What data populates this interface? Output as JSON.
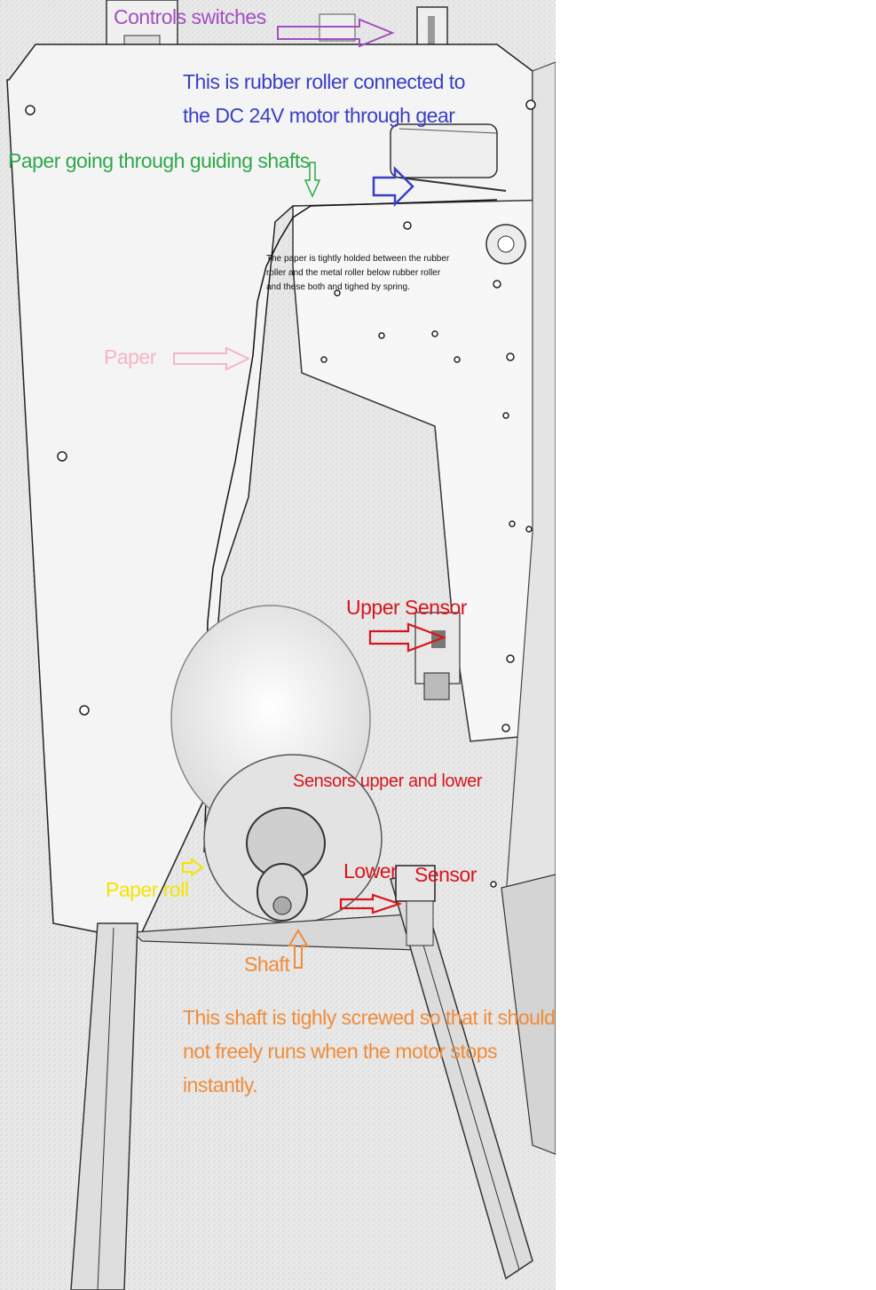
{
  "colors": {
    "purple": "#a24fc2",
    "blue": "#3a3fc6",
    "green": "#2ea84a",
    "pink": "#f4b6c6",
    "red": "#d9141c",
    "yellow": "#f5e400",
    "orange": "#f08c3a"
  },
  "labels": {
    "controls": "Controls switches",
    "rubber_roller_1": "This is rubber roller connected to",
    "rubber_roller_2": "the DC 24V motor through gear",
    "paper_guiding": "Paper going through guiding shafts",
    "tight_note": "The paper is tightly holded between the rubber roller and the metal roller below rubber roller and these both and tighed by spring.",
    "paper": "Paper",
    "upper_sensor": "Upper Sensor",
    "sensors_both": "Sensors upper and lower",
    "lower": "Lower",
    "sensor": "Sensor",
    "paper_roll": "Paper roll",
    "shaft": "Shaft",
    "shaft_note_1": "This shaft is  tighly screwed so that it should",
    "shaft_note_2": "not freely runs when the motor stops",
    "shaft_note_3": "instantly."
  }
}
